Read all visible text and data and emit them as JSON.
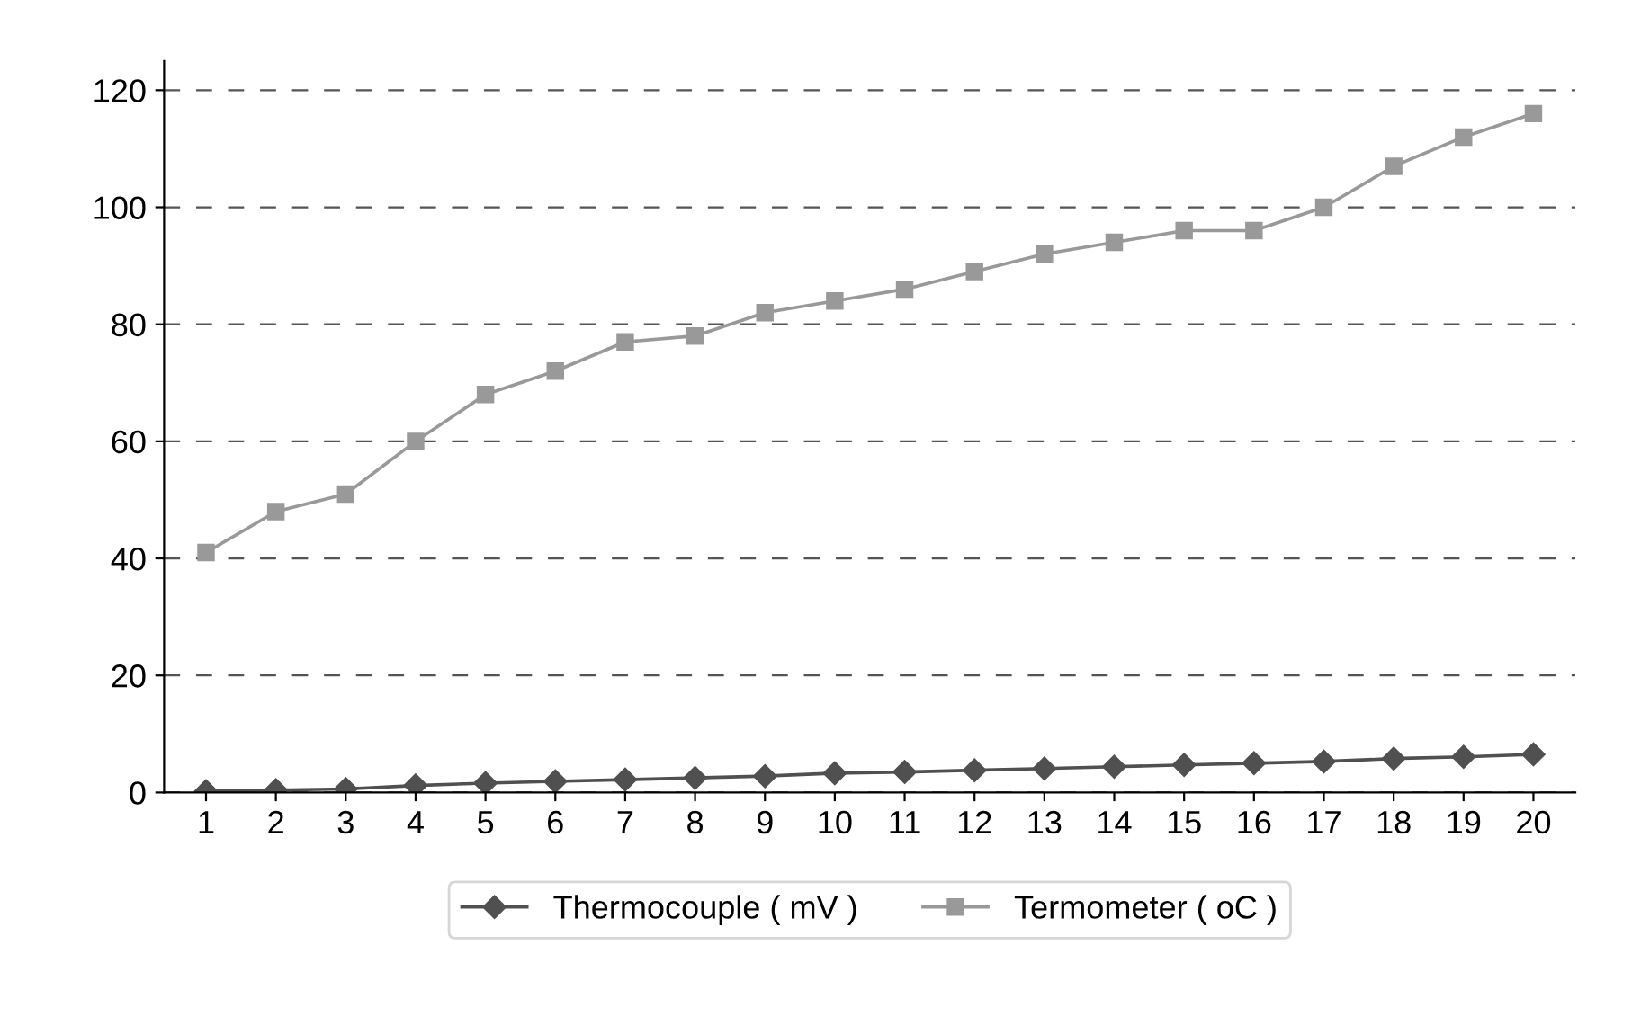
{
  "chart_data": {
    "type": "line",
    "categories": [
      "1",
      "2",
      "3",
      "4",
      "5",
      "6",
      "7",
      "8",
      "9",
      "10",
      "11",
      "12",
      "13",
      "14",
      "15",
      "16",
      "17",
      "18",
      "19",
      "20"
    ],
    "series": [
      {
        "name": "Thermocouple ( mV )",
        "color": "#505050",
        "marker": "diamond",
        "values": [
          0.2,
          0.4,
          0.6,
          1.2,
          1.6,
          1.9,
          2.2,
          2.5,
          2.8,
          3.3,
          3.5,
          3.8,
          4.1,
          4.4,
          4.7,
          5,
          5.3,
          5.8,
          6.1,
          6.5
        ]
      },
      {
        "name": "Termometer ( oC )",
        "color": "#999999",
        "marker": "square",
        "values": [
          41,
          48,
          51,
          60,
          68,
          72,
          77,
          78,
          82,
          84,
          86,
          89,
          92,
          94,
          96,
          96,
          100,
          107,
          112,
          116
        ]
      }
    ],
    "ylim": [
      0,
      125
    ],
    "yticks": [
      0,
      20,
      40,
      60,
      80,
      100,
      120
    ],
    "grid": "y",
    "legend": "bottom",
    "line_style": "solid"
  }
}
